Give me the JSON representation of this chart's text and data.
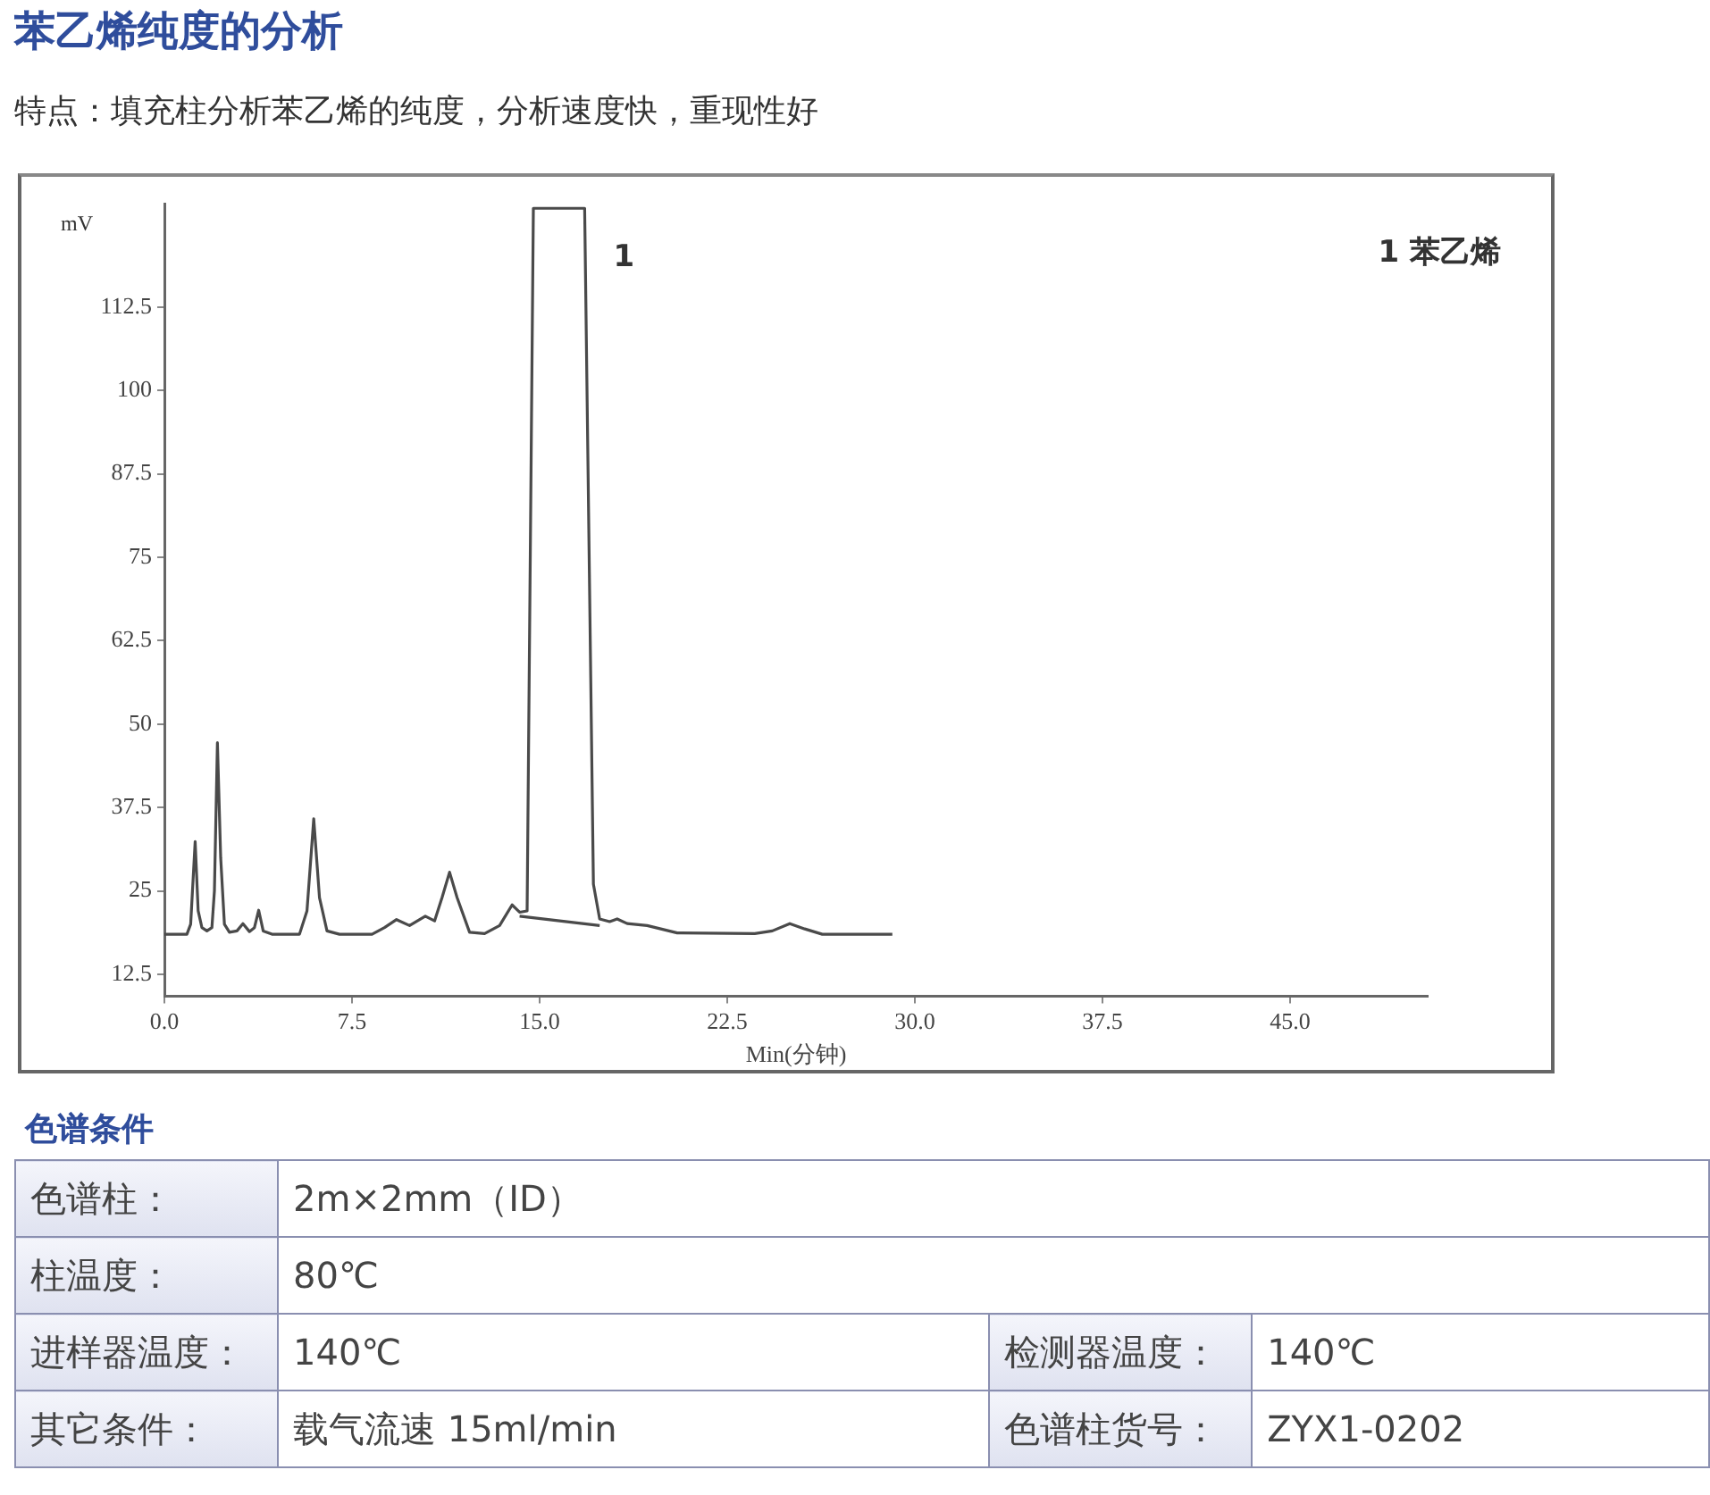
{
  "chart_data": {
    "type": "line",
    "title": "苯乙烯纯度的分析",
    "subtitle": "特点：填充柱分析苯乙烯的纯度，分析速度快，重现性好",
    "xlabel": "Min(分钟)",
    "ylabel": "mV",
    "xlim": [
      0,
      50.5
    ],
    "xticks": [
      {
        "value": 0,
        "label": "0.0"
      },
      7.5,
      {
        "value": 15,
        "label": "15.0"
      },
      22.5,
      {
        "value": 30,
        "label": "30.0"
      },
      37.5,
      {
        "value": 45,
        "label": "45.0"
      }
    ],
    "ylim": [
      9.2,
      128
    ],
    "yticks": [
      12.5,
      25,
      37.5,
      50,
      62.5,
      75,
      87.5,
      100,
      112.5
    ],
    "grid": false,
    "legend": false,
    "marker": "none",
    "line_style": "solid",
    "series": [
      {
        "color": "#4a4a4a",
        "x": [
          0,
          0.9,
          1.05,
          1.23,
          1.35,
          1.5,
          1.7,
          1.9,
          2.0,
          2.12,
          2.25,
          2.4,
          2.6,
          2.9,
          3.14,
          3.4,
          3.6,
          3.77,
          3.95,
          4.3,
          5.4,
          5.7,
          5.97,
          6.2,
          6.5,
          7.0,
          8.3,
          8.8,
          9.28,
          9.8,
          10.43,
          10.8,
          11.1,
          11.4,
          11.7,
          12.2,
          12.8,
          13.4,
          13.9,
          14.2,
          14.5,
          14.75,
          16.8,
          17.15,
          17.4,
          17.8,
          18.1,
          18.5,
          19.3,
          20.5,
          23.6,
          24.3,
          25.0,
          25.6,
          26.3,
          29.1
        ],
        "values": [
          18.5,
          18.5,
          20,
          32.4,
          22,
          19.5,
          19,
          19.5,
          25,
          47.2,
          30,
          20,
          18.8,
          19,
          20.1,
          18.9,
          19.5,
          22.1,
          19,
          18.5,
          18.5,
          22,
          35.8,
          24,
          19,
          18.5,
          18.5,
          19.5,
          20.7,
          19.8,
          21.2,
          20.5,
          24,
          27.8,
          24,
          18.8,
          18.6,
          19.8,
          22.9,
          21.8,
          22,
          127.3,
          127.3,
          26,
          20.8,
          20.4,
          20.8,
          20.1,
          19.8,
          18.7,
          18.6,
          19,
          20.1,
          19.3,
          18.5,
          18.5
        ]
      },
      {
        "color": "#4a4a4a",
        "x": [
          14.2,
          17.4
        ],
        "values": [
          21.2,
          19.8
        ]
      }
    ],
    "annotations": [
      {
        "text": "1",
        "x": 16.8,
        "y": 127.3
      },
      "1 苯乙烯",
      "色谱条件",
      "色谱柱：",
      "2m×2mm（ID）",
      "柱温度：",
      "80℃",
      "进样器温度：",
      "140℃",
      "检测器温度：",
      "140℃",
      "其它条件：",
      "载气流速 15ml/min",
      "色谱柱货号：",
      "ZYX1-0202"
    ]
  }
}
